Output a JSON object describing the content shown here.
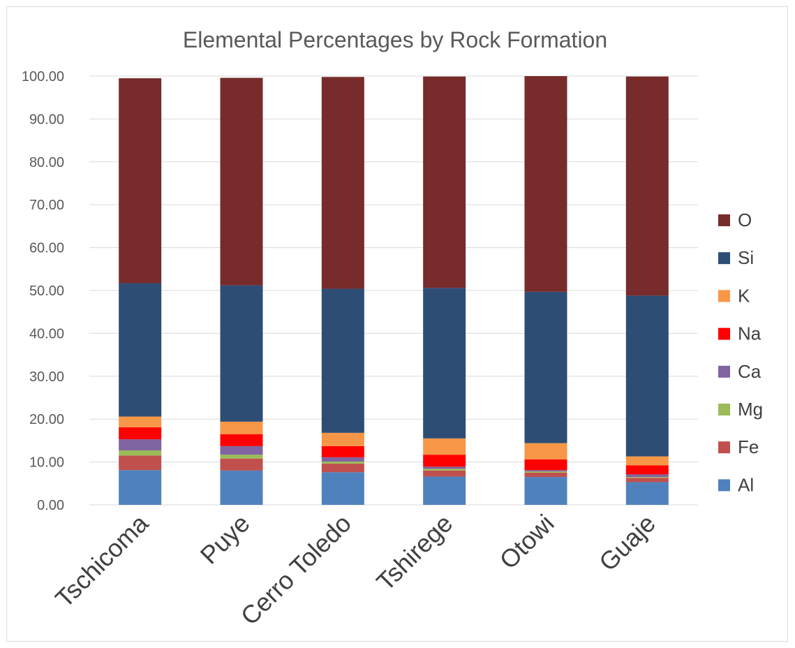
{
  "chart_data": {
    "type": "bar",
    "stacked": true,
    "title": "Elemental Percentages by Rock Formation",
    "xlabel": "",
    "ylabel": "",
    "ylim": [
      0,
      100
    ],
    "ytick_step": 10,
    "ytick_format": "0.00",
    "grid": true,
    "legend_position": "right",
    "categories": [
      "Tschicoma",
      "Puye",
      "Cerro Toledo",
      "Tshirege",
      "Otowi",
      "Guaje"
    ],
    "series": [
      {
        "name": "Al",
        "color": "#4F81BD",
        "values": [
          8.1,
          8.0,
          7.6,
          6.6,
          6.5,
          5.3
        ]
      },
      {
        "name": "Fe",
        "color": "#C0504D",
        "values": [
          3.4,
          2.8,
          2.0,
          1.4,
          1.0,
          1.0
        ]
      },
      {
        "name": "Mg",
        "color": "#9BBB59",
        "values": [
          1.2,
          0.9,
          0.5,
          0.4,
          0.3,
          0.2
        ]
      },
      {
        "name": "Ca",
        "color": "#8064A2",
        "values": [
          2.6,
          2.0,
          1.0,
          0.5,
          0.3,
          0.6
        ]
      },
      {
        "name": "Na",
        "color": "#FF0000",
        "values": [
          2.8,
          2.8,
          2.6,
          2.8,
          2.5,
          2.1
        ]
      },
      {
        "name": "K",
        "color": "#F79646",
        "values": [
          2.5,
          2.9,
          3.1,
          3.8,
          3.8,
          2.1
        ]
      },
      {
        "name": "Si",
        "color": "#2E4D75",
        "values": [
          31.1,
          31.8,
          33.6,
          35.1,
          35.3,
          37.5
        ]
      },
      {
        "name": "O",
        "color": "#772B2B",
        "values": [
          47.8,
          48.4,
          49.4,
          49.3,
          50.3,
          51.1
        ]
      }
    ]
  }
}
